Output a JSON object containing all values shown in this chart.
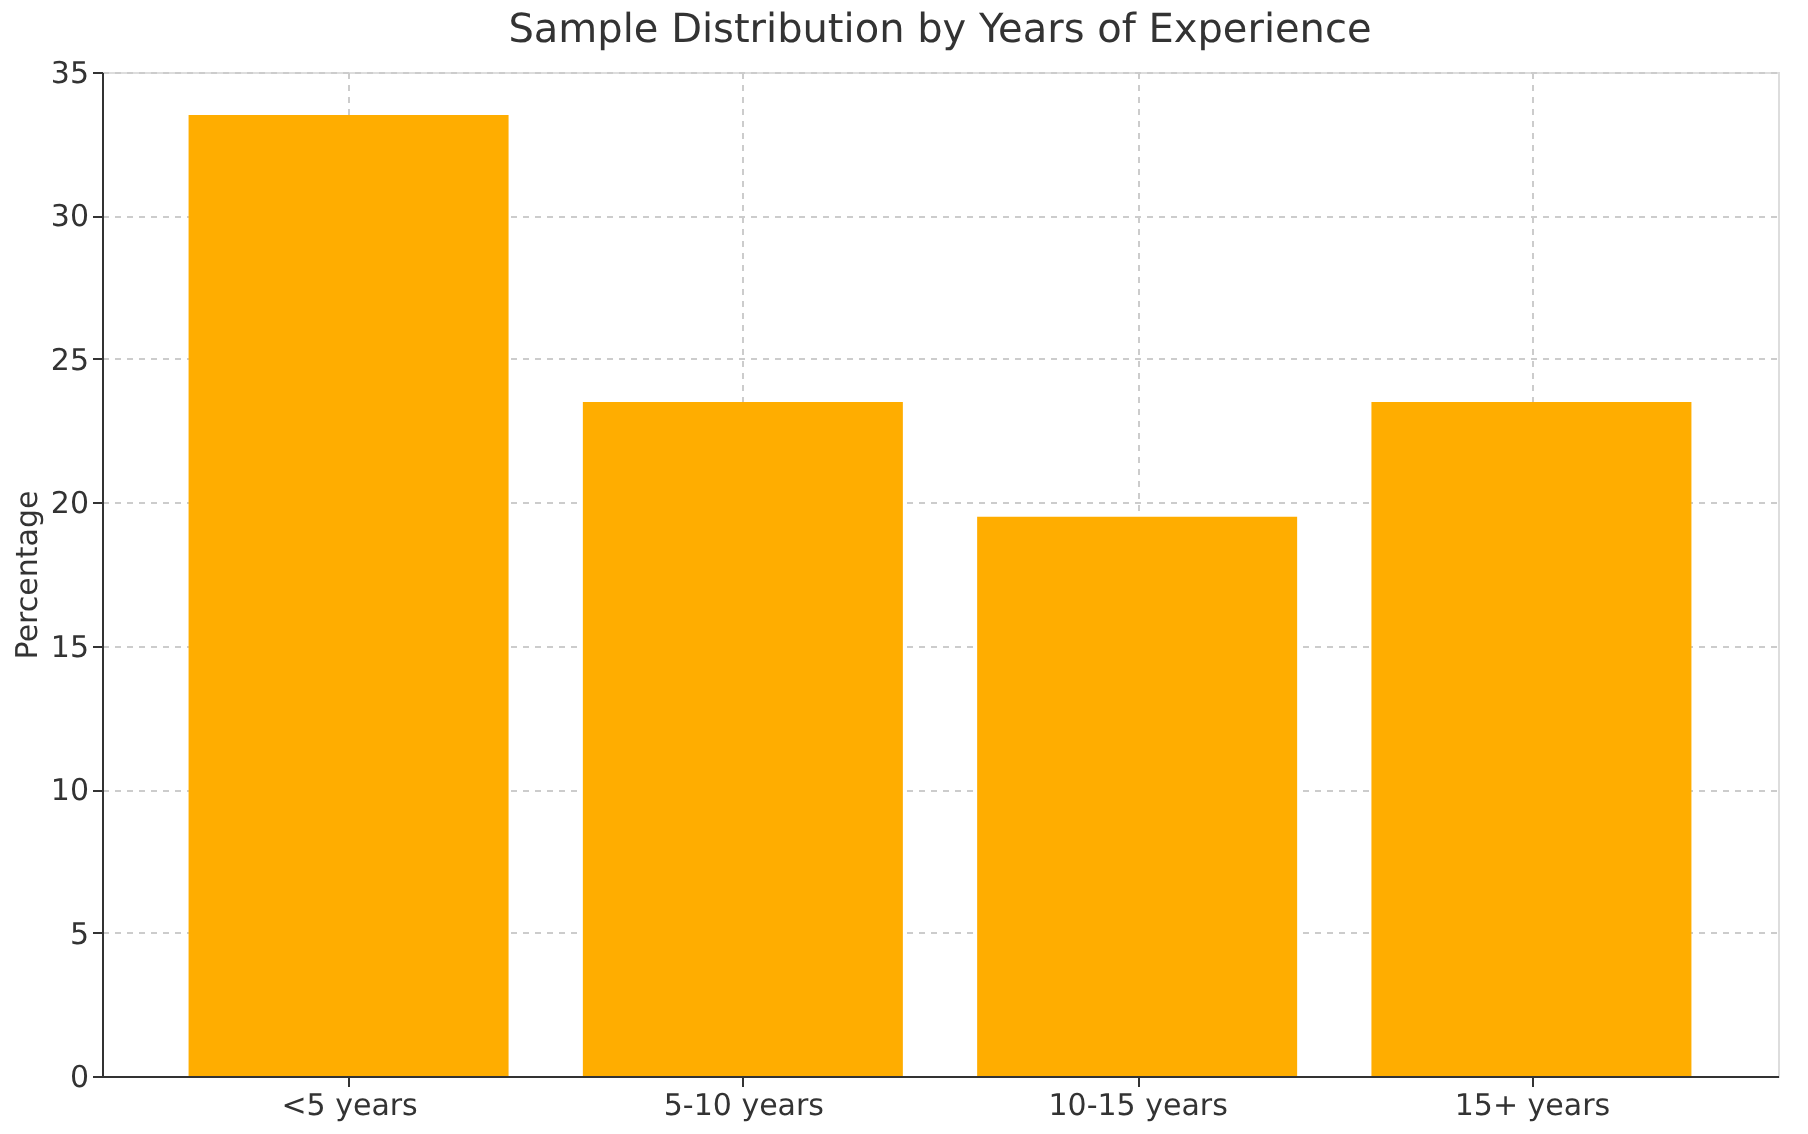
{
  "chart_data": {
    "type": "bar",
    "title": "Sample Distribution by Years of Experience",
    "ylabel": "Percentage",
    "categories": [
      "<5 years",
      "5-10 years",
      "10-15 years",
      "15+ years"
    ],
    "values": [
      33.5,
      23.5,
      19.5,
      23.5
    ],
    "color": "#ffad00",
    "ylim": [
      0,
      35
    ],
    "yticks": [
      0,
      5,
      10,
      15,
      20,
      25,
      30,
      35
    ],
    "grid": true
  }
}
